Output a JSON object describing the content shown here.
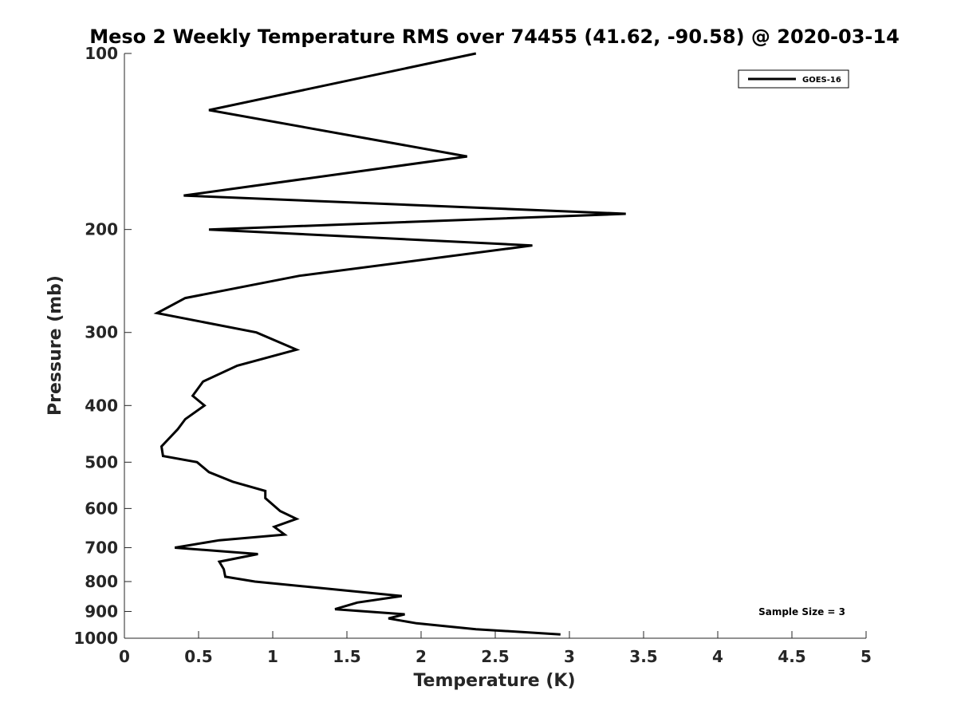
{
  "chart_data": {
    "type": "line",
    "title": "Meso 2 Weekly Temperature RMS over 74455 (41.62, -90.58) @ 2020-03-14",
    "xlabel": "Temperature (K)",
    "ylabel": "Pressure (mb)",
    "xlim": [
      0,
      5
    ],
    "ylim": [
      1000,
      100
    ],
    "y_scale": "log",
    "x_ticks": [
      0,
      0.5,
      1,
      1.5,
      2,
      2.5,
      3,
      3.5,
      4,
      4.5,
      5
    ],
    "x_tick_labels": [
      "0",
      "0.5",
      "1",
      "1.5",
      "2",
      "2.5",
      "3",
      "3.5",
      "4",
      "4.5",
      "5"
    ],
    "y_ticks": [
      100,
      200,
      300,
      400,
      500,
      600,
      700,
      800,
      900,
      1000
    ],
    "y_tick_labels": [
      "100",
      "200",
      "300",
      "400",
      "500",
      "600",
      "700",
      "800",
      "900",
      "1000"
    ],
    "grid": false,
    "legend_position": "top-right",
    "series": [
      {
        "name": "GOES-16",
        "color": "#000000",
        "x": [
          2.37,
          0.57,
          2.31,
          0.4,
          3.38,
          0.57,
          2.75,
          1.18,
          0.41,
          0.22,
          0.89,
          1.16,
          0.76,
          0.53,
          0.46,
          0.54,
          0.41,
          0.36,
          0.25,
          0.26,
          0.49,
          0.57,
          0.73,
          0.95,
          0.95,
          1.05,
          1.16,
          1.01,
          1.08,
          0.64,
          0.34,
          0.9,
          0.64,
          0.67,
          0.68,
          0.88,
          1.87,
          1.57,
          1.42,
          1.89,
          1.78,
          1.97,
          2.37,
          2.94
        ],
        "y": [
          100,
          125,
          150,
          175,
          188,
          200,
          213,
          240,
          262,
          278,
          300,
          321,
          342,
          364,
          385,
          400,
          422,
          439,
          470,
          488,
          500,
          520,
          540,
          560,
          576,
          606,
          625,
          645,
          665,
          680,
          700,
          718,
          740,
          762,
          785,
          800,
          847,
          869,
          892,
          910,
          925,
          943,
          965,
          985
        ]
      }
    ],
    "annotations": [
      "Sample Size = 3"
    ]
  }
}
